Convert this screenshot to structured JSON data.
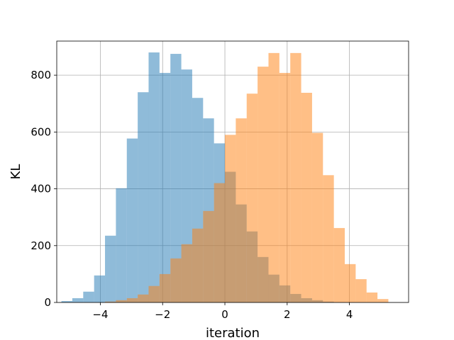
{
  "chart_data": {
    "type": "bar",
    "title": "",
    "xlabel": "iteration",
    "ylabel": "KL",
    "xlim": [
      -5.4,
      5.9
    ],
    "ylim": [
      0,
      920
    ],
    "xticks": [
      -4,
      -2,
      0,
      2,
      4
    ],
    "yticks": [
      0,
      200,
      400,
      600,
      800
    ],
    "xtick_labels": [
      "−4",
      "−2",
      "0",
      "2",
      "4"
    ],
    "ytick_labels": [
      "0",
      "200",
      "400",
      "600",
      "800"
    ],
    "grid": true,
    "legend": "none",
    "bin_width": 0.35,
    "series": [
      {
        "color": "#1f77b4",
        "opacity": 0.5,
        "bin_edges": [
          -5.25,
          -4.9,
          -4.55,
          -4.2,
          -3.85,
          -3.5,
          -3.15,
          -2.8,
          -2.45,
          -2.1,
          -1.75,
          -1.4,
          -1.05,
          -0.7,
          -0.35,
          0.0,
          0.35,
          0.7,
          1.05,
          1.4,
          1.75,
          2.1,
          2.45,
          2.8,
          3.15,
          3.5,
          3.85
        ],
        "values": [
          5,
          15,
          38,
          95,
          235,
          402,
          577,
          740,
          880,
          808,
          875,
          820,
          720,
          648,
          560,
          460,
          345,
          250,
          160,
          98,
          60,
          30,
          15,
          8,
          3,
          1
        ]
      },
      {
        "color": "#ff7f0e",
        "opacity": 0.5,
        "bin_edges": [
          -3.85,
          -3.5,
          -3.15,
          -2.8,
          -2.45,
          -2.1,
          -1.75,
          -1.4,
          -1.05,
          -0.7,
          -0.35,
          0.0,
          0.35,
          0.7,
          1.05,
          1.4,
          1.75,
          2.1,
          2.45,
          2.8,
          3.15,
          3.5,
          3.85,
          4.2,
          4.55,
          4.9,
          5.25
        ],
        "values": [
          3,
          8,
          15,
          28,
          58,
          100,
          155,
          205,
          260,
          322,
          420,
          590,
          648,
          735,
          830,
          878,
          808,
          878,
          738,
          597,
          448,
          262,
          135,
          82,
          35,
          12
        ]
      }
    ]
  }
}
